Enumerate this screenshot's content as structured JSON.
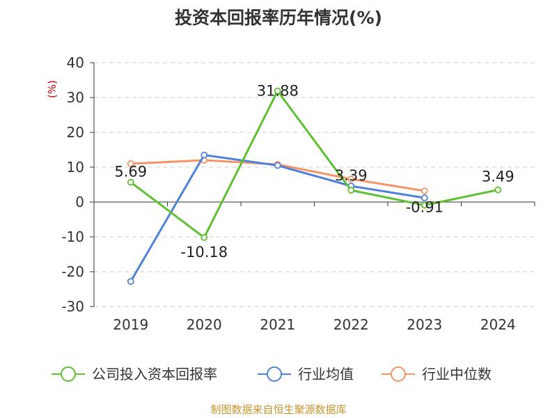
{
  "chart_data": {
    "type": "line",
    "title": "投资本回报率历年情况(%)",
    "ylabel": "(%)",
    "xlabel": "",
    "categories": [
      "2019",
      "2020",
      "2021",
      "2022",
      "2023",
      "2024"
    ],
    "ylim": [
      -30,
      40
    ],
    "yticks": [
      40,
      30,
      20,
      10,
      0,
      -10,
      -20,
      -30
    ],
    "grid": true,
    "legend_position": "bottom",
    "series": [
      {
        "name": "公司投入资本回报率",
        "color": "#5cc02f",
        "values": [
          5.69,
          -10.18,
          31.88,
          3.39,
          -0.91,
          3.49
        ],
        "labels": [
          "5.69",
          "-10.18",
          "31.88",
          "3.39",
          "-0.91",
          "3.49"
        ]
      },
      {
        "name": "行业均值",
        "color": "#4f81db",
        "values": [
          -22.8,
          13.5,
          10.5,
          4.6,
          1.2,
          null
        ]
      },
      {
        "name": "行业中位数",
        "color": "#f59466",
        "values": [
          11.0,
          12.0,
          10.8,
          6.6,
          3.2,
          null
        ]
      }
    ]
  },
  "source": "制图数据来自恒生聚源数据库"
}
